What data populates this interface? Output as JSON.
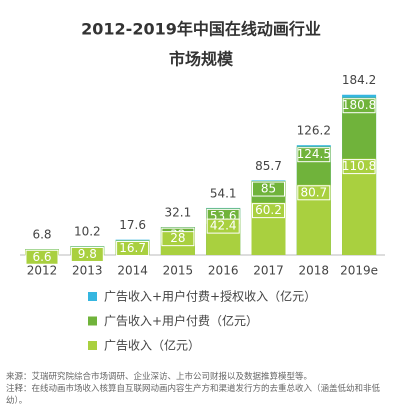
{
  "chart_data": {
    "type": "overlap-bar",
    "title": "2012-2019年中国在线动画行业",
    "subtitle": "市场规模",
    "categories": [
      "2012",
      "2013",
      "2014",
      "2015",
      "2016",
      "2017",
      "2018",
      "2019e"
    ],
    "series": [
      {
        "name": "广告收入+用户付费+授权收入（亿元）",
        "color": "#35b6e0",
        "values": [
          6.8,
          10.2,
          17.6,
          32.1,
          54.1,
          85.7,
          126.2,
          184.2
        ]
      },
      {
        "name": "广告收入+用户付费（亿元）",
        "color": "#70b33b",
        "values": [
          null,
          null,
          null,
          32.0,
          53.6,
          85.0,
          124.5,
          180.8
        ]
      },
      {
        "name": "广告收入（亿元）",
        "color": "#a9d03f",
        "values": [
          6.6,
          9.8,
          16.7,
          28.0,
          42.4,
          60.2,
          80.7,
          110.8
        ]
      }
    ],
    "ylim": [
      0,
      200
    ],
    "source": "来源：艾瑞研究院综合市场调研、企业深访、上市公司财报以及数据推算模型等。",
    "note": "注释：在线动画市场收入核算自互联网动画内容生产方和渠道发行方的去重总收入（涵盖低幼和非低幼）。"
  }
}
